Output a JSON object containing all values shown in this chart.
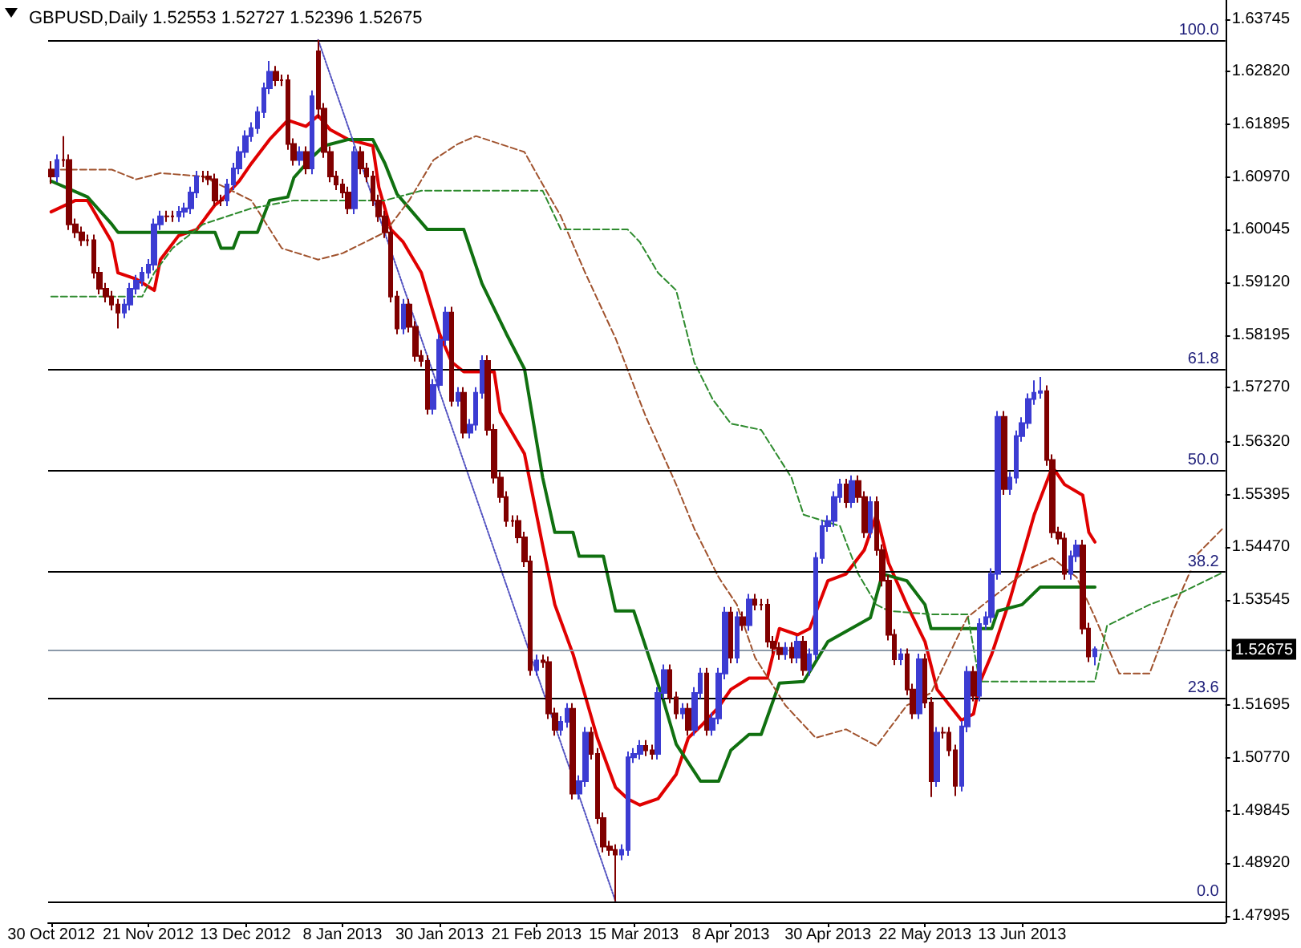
{
  "chart_data": {
    "type": "candlestick",
    "title": "GBPUSD,Daily 1.52553 1.52727 1.52396 1.52675",
    "categories": [
      "30 Oct 2012",
      null,
      null,
      null,
      null,
      null,
      null,
      null,
      null,
      null,
      null,
      null,
      null,
      null,
      null,
      null,
      "21 Nov 2012",
      null,
      null,
      null,
      null,
      null,
      null,
      null,
      null,
      null,
      null,
      null,
      null,
      null,
      null,
      null,
      "13 Dec 2012",
      null,
      null,
      null,
      null,
      null,
      null,
      null,
      null,
      null,
      null,
      null,
      null,
      null,
      null,
      null,
      "8 Jan 2013",
      null,
      null,
      null,
      null,
      null,
      null,
      null,
      null,
      null,
      null,
      null,
      null,
      null,
      null,
      null,
      "30 Jan 2013",
      null,
      null,
      null,
      null,
      null,
      null,
      null,
      null,
      null,
      null,
      null,
      null,
      null,
      null,
      null,
      "21 Feb 2013",
      null,
      null,
      null,
      null,
      null,
      null,
      null,
      null,
      null,
      null,
      null,
      null,
      null,
      null,
      null,
      "15 Mar 2013",
      null,
      null,
      null,
      null,
      null,
      null,
      null,
      null,
      null,
      null,
      null,
      null,
      null,
      null,
      null,
      "8 Apr 2013",
      null,
      null,
      null,
      null,
      null,
      null,
      null,
      null,
      null,
      null,
      null,
      null,
      null,
      null,
      null,
      "30 Apr 2013",
      null,
      null,
      null,
      null,
      null,
      null,
      null,
      null,
      null,
      null,
      null,
      null,
      null,
      null,
      null,
      "22 May 2013",
      null,
      null,
      null,
      null,
      null,
      null,
      null,
      null,
      null,
      null,
      null,
      null,
      null,
      null,
      null,
      "13 Jun 2013",
      null,
      null,
      null,
      null,
      null,
      null,
      null,
      null,
      null,
      null,
      null,
      null,
      null,
      null,
      null,
      null,
      null,
      null,
      null,
      null,
      null,
      null,
      null,
      null,
      null,
      null,
      null,
      null,
      null,
      null,
      null,
      null,
      null
    ],
    "ohlc": [
      [
        1.611,
        1.6125,
        1.6085,
        1.6098
      ],
      [
        1.6098,
        1.6137,
        1.6088,
        1.6127
      ],
      [
        1.6127,
        1.6169,
        1.6115,
        1.6127
      ],
      [
        1.6127,
        1.6137,
        1.6004,
        1.6014
      ],
      [
        1.6014,
        1.6024,
        1.599,
        1.6
      ],
      [
        1.6,
        1.601,
        1.5976,
        1.5986
      ],
      [
        1.5986,
        1.5996,
        1.5976,
        1.5986
      ],
      [
        1.5986,
        1.5996,
        1.5919,
        1.5929
      ],
      [
        1.5929,
        1.5939,
        1.5891,
        1.5901
      ],
      [
        1.5901,
        1.5911,
        1.5877,
        1.5887
      ],
      [
        1.5887,
        1.5897,
        1.5863,
        1.5873
      ],
      [
        1.5873,
        1.5883,
        1.5831,
        1.5859
      ],
      [
        1.5859,
        1.5883,
        1.5849,
        1.5873
      ],
      [
        1.5873,
        1.5911,
        1.5863,
        1.5901
      ],
      [
        1.5901,
        1.5925,
        1.5891,
        1.5915
      ],
      [
        1.5915,
        1.5939,
        1.5905,
        1.5929
      ],
      [
        1.5929,
        1.5953,
        1.5919,
        1.5943
      ],
      [
        1.5943,
        1.6024,
        1.5933,
        1.6014
      ],
      [
        1.6014,
        1.6038,
        1.6004,
        1.6028
      ],
      [
        1.6028,
        1.6038,
        1.6018,
        1.6028
      ],
      [
        1.6028,
        1.6038,
        1.6018,
        1.6028
      ],
      [
        1.6028,
        1.6046,
        1.6018,
        1.6036
      ],
      [
        1.6036,
        1.6052,
        1.6026,
        1.6042
      ],
      [
        1.6042,
        1.608,
        1.6032,
        1.607
      ],
      [
        1.607,
        1.6108,
        1.606,
        1.6098
      ],
      [
        1.6098,
        1.6108,
        1.6088,
        1.6098
      ],
      [
        1.6098,
        1.6108,
        1.6083,
        1.6093
      ],
      [
        1.6093,
        1.6103,
        1.6046,
        1.6056
      ],
      [
        1.6056,
        1.6066,
        1.6046,
        1.6056
      ],
      [
        1.6056,
        1.6094,
        1.6046,
        1.6084
      ],
      [
        1.6084,
        1.6122,
        1.6074,
        1.6112
      ],
      [
        1.6112,
        1.6151,
        1.6102,
        1.6141
      ],
      [
        1.6141,
        1.6179,
        1.6131,
        1.6169
      ],
      [
        1.6169,
        1.6193,
        1.6159,
        1.6183
      ],
      [
        1.6183,
        1.6221,
        1.6173,
        1.6211
      ],
      [
        1.6211,
        1.6263,
        1.6201,
        1.6253
      ],
      [
        1.6253,
        1.6301,
        1.6243,
        1.6282
      ],
      [
        1.6282,
        1.6292,
        1.6257,
        1.6267
      ],
      [
        1.6267,
        1.6277,
        1.6257,
        1.6267
      ],
      [
        1.6267,
        1.6277,
        1.6145,
        1.6155
      ],
      [
        1.6155,
        1.6165,
        1.6117,
        1.6127
      ],
      [
        1.6127,
        1.6151,
        1.6117,
        1.6141
      ],
      [
        1.6141,
        1.6151,
        1.6102,
        1.6112
      ],
      [
        1.6112,
        1.6249,
        1.6102,
        1.6239
      ],
      [
        1.6318,
        1.6338,
        1.62,
        1.6217
      ],
      [
        1.6217,
        1.6227,
        1.6131,
        1.6141
      ],
      [
        1.6141,
        1.6151,
        1.6088,
        1.6098
      ],
      [
        1.6098,
        1.6108,
        1.6074,
        1.6084
      ],
      [
        1.6084,
        1.6094,
        1.606,
        1.607
      ],
      [
        1.607,
        1.608,
        1.6032,
        1.6042
      ],
      [
        1.6042,
        1.6151,
        1.6032,
        1.6141
      ],
      [
        1.6141,
        1.6151,
        1.6102,
        1.6112
      ],
      [
        1.6112,
        1.6122,
        1.6088,
        1.6098
      ],
      [
        1.6098,
        1.6108,
        1.6046,
        1.6056
      ],
      [
        1.6056,
        1.6066,
        1.6018,
        1.6028
      ],
      [
        1.6028,
        1.6038,
        1.599,
        1.6
      ],
      [
        1.6,
        1.601,
        1.5877,
        1.5887
      ],
      [
        1.5887,
        1.5897,
        1.5821,
        1.5831
      ],
      [
        1.5831,
        1.5883,
        1.5821,
        1.5873
      ],
      [
        1.5873,
        1.5883,
        1.5824,
        1.5834
      ],
      [
        1.5834,
        1.5844,
        1.5773,
        1.5783
      ],
      [
        1.5783,
        1.5793,
        1.5764,
        1.5774
      ],
      [
        1.5774,
        1.5784,
        1.568,
        1.569
      ],
      [
        1.569,
        1.5742,
        1.568,
        1.5732
      ],
      [
        1.5732,
        1.5821,
        1.5722,
        1.5811
      ],
      [
        1.5811,
        1.5869,
        1.5801,
        1.5859
      ],
      [
        1.5859,
        1.5869,
        1.5694,
        1.5704
      ],
      [
        1.5704,
        1.5728,
        1.5694,
        1.5718
      ],
      [
        1.5718,
        1.5728,
        1.5638,
        1.5648
      ],
      [
        1.5648,
        1.5672,
        1.5638,
        1.5662
      ],
      [
        1.5662,
        1.5728,
        1.5652,
        1.5718
      ],
      [
        1.5718,
        1.5784,
        1.5708,
        1.5774
      ],
      [
        1.5774,
        1.5784,
        1.5643,
        1.5653
      ],
      [
        1.5653,
        1.5663,
        1.5559,
        1.5569
      ],
      [
        1.5569,
        1.5579,
        1.5525,
        1.5535
      ],
      [
        1.5535,
        1.5545,
        1.5483,
        1.5493
      ],
      [
        1.5493,
        1.5503,
        1.5483,
        1.5493
      ],
      [
        1.5493,
        1.5503,
        1.5454,
        1.5464
      ],
      [
        1.5464,
        1.5474,
        1.5412,
        1.5422
      ],
      [
        1.5422,
        1.5432,
        1.5221,
        1.5231
      ],
      [
        1.5231,
        1.5258,
        1.5221,
        1.5248
      ],
      [
        1.5248,
        1.5258,
        1.5235,
        1.5245
      ],
      [
        1.5245,
        1.5255,
        1.5145,
        1.5155
      ],
      [
        1.5155,
        1.5165,
        1.5116,
        1.5126
      ],
      [
        1.5126,
        1.515,
        1.5116,
        1.514
      ],
      [
        1.514,
        1.5173,
        1.513,
        1.5163
      ],
      [
        1.5163,
        1.5173,
        1.5004,
        1.5014
      ],
      [
        1.5014,
        1.5046,
        1.5004,
        1.5036
      ],
      [
        1.5036,
        1.5131,
        1.5026,
        1.5121
      ],
      [
        1.5121,
        1.5131,
        1.5074,
        1.5084
      ],
      [
        1.5084,
        1.5094,
        1.4961,
        1.4971
      ],
      [
        1.4971,
        1.4981,
        1.4911,
        1.4921
      ],
      [
        1.4921,
        1.4931,
        1.4905,
        1.4915
      ],
      [
        1.4915,
        1.4925,
        1.4825,
        1.4907
      ],
      [
        1.4907,
        1.4925,
        1.4897,
        1.4915
      ],
      [
        1.4915,
        1.5088,
        1.4905,
        1.5078
      ],
      [
        1.5078,
        1.5094,
        1.5068,
        1.5084
      ],
      [
        1.5084,
        1.5108,
        1.5074,
        1.5098
      ],
      [
        1.5098,
        1.5108,
        1.508,
        1.509
      ],
      [
        1.509,
        1.51,
        1.5074,
        1.5084
      ],
      [
        1.5084,
        1.5201,
        1.5074,
        1.5191
      ],
      [
        1.5191,
        1.5241,
        1.5181,
        1.5231
      ],
      [
        1.5231,
        1.5241,
        1.5173,
        1.5183
      ],
      [
        1.5183,
        1.5193,
        1.5145,
        1.5155
      ],
      [
        1.5155,
        1.5173,
        1.5145,
        1.5163
      ],
      [
        1.5163,
        1.5173,
        1.5116,
        1.5126
      ],
      [
        1.5126,
        1.5201,
        1.5116,
        1.5191
      ],
      [
        1.5191,
        1.5235,
        1.5181,
        1.5225
      ],
      [
        1.5225,
        1.5235,
        1.5116,
        1.5126
      ],
      [
        1.5126,
        1.5156,
        1.5116,
        1.5146
      ],
      [
        1.5146,
        1.5235,
        1.5136,
        1.5225
      ],
      [
        1.5225,
        1.5342,
        1.5215,
        1.5332
      ],
      [
        1.5332,
        1.5342,
        1.5243,
        1.5253
      ],
      [
        1.5253,
        1.5334,
        1.5243,
        1.5324
      ],
      [
        1.5324,
        1.5334,
        1.53,
        1.531
      ],
      [
        1.531,
        1.5365,
        1.53,
        1.5355
      ],
      [
        1.5355,
        1.5365,
        1.5336,
        1.5346
      ],
      [
        1.5346,
        1.5356,
        1.5336,
        1.5346
      ],
      [
        1.5346,
        1.5356,
        1.5271,
        1.5281
      ],
      [
        1.5281,
        1.5291,
        1.526,
        1.527
      ],
      [
        1.527,
        1.528,
        1.5249,
        1.5259
      ],
      [
        1.5259,
        1.528,
        1.5249,
        1.527
      ],
      [
        1.527,
        1.528,
        1.5243,
        1.5253
      ],
      [
        1.5253,
        1.5291,
        1.5243,
        1.5281
      ],
      [
        1.5281,
        1.5291,
        1.5221,
        1.5231
      ],
      [
        1.5231,
        1.5269,
        1.5221,
        1.5259
      ],
      [
        1.5259,
        1.5438,
        1.5249,
        1.5428
      ],
      [
        1.5428,
        1.5494,
        1.5418,
        1.5484
      ],
      [
        1.5484,
        1.5503,
        1.5474,
        1.5493
      ],
      [
        1.5493,
        1.5545,
        1.5483,
        1.5535
      ],
      [
        1.5535,
        1.5567,
        1.5525,
        1.5557
      ],
      [
        1.5557,
        1.5567,
        1.5516,
        1.5526
      ],
      [
        1.5526,
        1.5573,
        1.5516,
        1.5563
      ],
      [
        1.5563,
        1.5573,
        1.5525,
        1.5535
      ],
      [
        1.5535,
        1.5545,
        1.5463,
        1.5473
      ],
      [
        1.5473,
        1.5536,
        1.5463,
        1.5526
      ],
      [
        1.5526,
        1.5536,
        1.5432,
        1.5442
      ],
      [
        1.5442,
        1.5452,
        1.5378,
        1.5388
      ],
      [
        1.5388,
        1.5398,
        1.5283,
        1.5293
      ],
      [
        1.5293,
        1.5303,
        1.524,
        1.525
      ],
      [
        1.525,
        1.5269,
        1.524,
        1.5259
      ],
      [
        1.5259,
        1.5269,
        1.5187,
        1.5197
      ],
      [
        1.5197,
        1.5207,
        1.5145,
        1.5155
      ],
      [
        1.5155,
        1.526,
        1.5145,
        1.525
      ],
      [
        1.525,
        1.526,
        1.5164,
        1.5174
      ],
      [
        1.5174,
        1.5184,
        1.5008,
        1.5036
      ],
      [
        1.5036,
        1.5131,
        1.5026,
        1.5121
      ],
      [
        1.5121,
        1.5131,
        1.5111,
        1.5121
      ],
      [
        1.5121,
        1.5131,
        1.508,
        1.509
      ],
      [
        1.509,
        1.51,
        1.501,
        1.5028
      ],
      [
        1.5028,
        1.5142,
        1.5018,
        1.5132
      ],
      [
        1.5132,
        1.5238,
        1.5122,
        1.5228
      ],
      [
        1.5228,
        1.5238,
        1.5176,
        1.5186
      ],
      [
        1.5186,
        1.5322,
        1.5176,
        1.5312
      ],
      [
        1.5312,
        1.5334,
        1.5302,
        1.5324
      ],
      [
        1.5324,
        1.541,
        1.5314,
        1.54
      ],
      [
        1.54,
        1.5686,
        1.539,
        1.5676
      ],
      [
        1.5676,
        1.5686,
        1.5539,
        1.5549
      ],
      [
        1.5549,
        1.5579,
        1.5539,
        1.5569
      ],
      [
        1.5569,
        1.5652,
        1.5559,
        1.5642
      ],
      [
        1.5642,
        1.5675,
        1.5632,
        1.5665
      ],
      [
        1.5665,
        1.5717,
        1.5655,
        1.5707
      ],
      [
        1.5707,
        1.574,
        1.5697,
        1.5718
      ],
      [
        1.5718,
        1.5746,
        1.5708,
        1.5721
      ],
      [
        1.5721,
        1.5731,
        1.559,
        1.56
      ],
      [
        1.56,
        1.561,
        1.5463,
        1.5473
      ],
      [
        1.5473,
        1.5483,
        1.5452,
        1.5462
      ],
      [
        1.5462,
        1.5472,
        1.539,
        1.54
      ],
      [
        1.54,
        1.5441,
        1.539,
        1.5431
      ],
      [
        1.5431,
        1.546,
        1.5421,
        1.545
      ],
      [
        1.545,
        1.546,
        1.5294,
        1.5304
      ],
      [
        1.5304,
        1.5314,
        1.5245,
        1.5255
      ],
      [
        1.52553,
        1.52727,
        1.52396,
        1.52675
      ],
      null,
      null,
      null,
      null,
      null,
      null,
      null,
      null,
      null,
      null,
      null,
      null,
      null,
      null,
      null,
      null,
      null,
      null,
      null,
      null,
      null
    ],
    "colors": [
      "#800000",
      "#3c3cd2",
      "#800000",
      "#800000",
      "#800000",
      "#800000",
      "#800000",
      "#800000",
      "#800000",
      "#800000",
      "#800000",
      "#800000",
      "#3c3cd2",
      "#3c3cd2",
      "#3c3cd2",
      "#3c3cd2",
      "#3c3cd2",
      "#3c3cd2",
      "#3c3cd2",
      "#800000",
      "#800000",
      "#3c3cd2",
      "#3c3cd2",
      "#3c3cd2",
      "#3c3cd2",
      "#800000",
      "#800000",
      "#800000",
      "#800000",
      "#3c3cd2",
      "#3c3cd2",
      "#3c3cd2",
      "#3c3cd2",
      "#3c3cd2",
      "#3c3cd2",
      "#3c3cd2",
      "#3c3cd2",
      "#800000",
      "#800000",
      "#800000",
      "#800000",
      "#3c3cd2",
      "#800000",
      "#3c3cd2",
      "#800000",
      "#800000",
      "#800000",
      "#800000",
      "#800000",
      "#800000",
      "#3c3cd2",
      "#800000",
      "#800000",
      "#800000",
      "#800000",
      "#800000",
      "#800000",
      "#800000",
      "#3c3cd2",
      "#800000",
      "#800000",
      "#800000",
      "#800000",
      "#3c3cd2",
      "#3c3cd2",
      "#3c3cd2",
      "#800000",
      "#3c3cd2",
      "#800000",
      "#3c3cd2",
      "#3c3cd2",
      "#3c3cd2",
      "#800000",
      "#800000",
      "#800000",
      "#800000",
      "#800000",
      "#800000",
      "#800000",
      "#800000",
      "#3c3cd2",
      "#800000",
      "#800000",
      "#800000",
      "#3c3cd2",
      "#3c3cd2",
      "#800000",
      "#3c3cd2",
      "#3c3cd2",
      "#800000",
      "#800000",
      "#800000",
      "#800000",
      "#800000",
      "#3c3cd2",
      "#3c3cd2",
      "#3c3cd2",
      "#3c3cd2",
      "#800000",
      "#800000",
      "#3c3cd2",
      "#3c3cd2",
      "#800000",
      "#800000",
      "#3c3cd2",
      "#800000",
      "#3c3cd2",
      "#3c3cd2",
      "#800000",
      "#3c3cd2",
      "#3c3cd2",
      "#3c3cd2",
      "#800000",
      "#3c3cd2",
      "#800000",
      "#3c3cd2",
      "#800000",
      "#800000",
      "#800000",
      "#800000",
      "#800000",
      "#3c3cd2",
      "#800000",
      "#3c3cd2",
      "#800000",
      "#3c3cd2",
      "#3c3cd2",
      "#3c3cd2",
      "#3c3cd2",
      "#3c3cd2",
      "#3c3cd2",
      "#800000",
      "#3c3cd2",
      "#800000",
      "#800000",
      "#3c3cd2",
      "#800000",
      "#800000",
      "#800000",
      "#800000",
      "#3c3cd2",
      "#800000",
      "#800000",
      "#3c3cd2",
      "#800000",
      "#800000",
      "#3c3cd2",
      "#800000",
      "#800000",
      "#800000",
      "#3c3cd2",
      "#3c3cd2",
      "#800000",
      "#3c3cd2",
      "#3c3cd2",
      "#3c3cd2",
      "#3c3cd2",
      "#800000",
      "#3c3cd2",
      "#3c3cd2",
      "#3c3cd2",
      "#3c3cd2",
      "#3c3cd2",
      "#3c3cd2",
      "#800000",
      "#800000",
      "#800000",
      "#800000",
      "#3c3cd2",
      "#3c3cd2",
      "#800000",
      "#800000",
      "#3c3cd2",
      null,
      null,
      null,
      null,
      null,
      null,
      null,
      null,
      null,
      null,
      null,
      null,
      null,
      null,
      null,
      null,
      null,
      null,
      null,
      null,
      null
    ],
    "series": [
      {
        "type": "line",
        "color": "#e00000",
        "line_style": "solid",
        "values": [
          1.6036,
          null,
          null,
          null,
          1.6056,
          null,
          1.6056,
          null,
          null,
          null,
          1.5983,
          1.5929,
          null,
          null,
          1.5918,
          null,
          null,
          1.5898,
          1.5952,
          null,
          null,
          1.5994,
          null,
          null,
          1.6005,
          null,
          null,
          1.6048,
          1.6056,
          null,
          null,
          1.609,
          null,
          1.6121,
          null,
          null,
          1.6163,
          null,
          null,
          1.6197,
          null,
          null,
          1.6186,
          null,
          1.6205,
          null,
          1.618,
          null,
          null,
          1.6163,
          null,
          null,
          null,
          1.6152,
          1.6079,
          null,
          1.6005,
          null,
          1.5983,
          null,
          null,
          1.5929,
          null,
          null,
          1.5822,
          null,
          1.5772,
          null,
          1.5755,
          null,
          null,
          null,
          null,
          1.5755,
          1.5684,
          null,
          null,
          null,
          1.5611,
          null,
          null,
          1.545,
          null,
          1.5346,
          null,
          null,
          1.5259,
          null,
          1.5186,
          null,
          1.5112,
          null,
          null,
          1.5025,
          null,
          1.5005,
          null,
          1.4994,
          null,
          null,
          1.5005,
          null,
          null,
          1.5048,
          null,
          1.5112,
          null,
          1.5132,
          null,
          null,
          1.5166,
          null,
          1.5197,
          null,
          null,
          1.5217,
          null,
          null,
          1.5217,
          null,
          1.5304,
          null,
          null,
          1.5293,
          null,
          1.5304,
          null,
          null,
          1.5388,
          null,
          null,
          1.54,
          null,
          null,
          1.5442,
          null,
          1.5504,
          null,
          1.5419,
          null,
          null,
          1.5346,
          null,
          null,
          1.5281,
          null,
          1.5197,
          null,
          null,
          null,
          1.5143,
          null,
          1.5154,
          1.5208,
          null,
          1.5259,
          null,
          null,
          1.5355,
          null,
          null,
          null,
          1.5504,
          null,
          null,
          1.5588,
          null,
          1.5557,
          null,
          null,
          1.5538,
          1.5473,
          1.5456,
          null,
          null,
          null,
          null,
          null,
          null,
          null,
          null,
          null,
          null,
          null,
          null,
          null,
          null,
          null,
          null,
          null,
          null,
          null,
          null,
          null
        ]
      },
      {
        "type": "line",
        "color": "#107010",
        "line_style": "solid",
        "values": [
          1.609,
          null,
          null,
          null,
          null,
          null,
          1.6062,
          null,
          null,
          null,
          1.6014,
          1.6,
          null,
          null,
          null,
          null,
          null,
          null,
          null,
          null,
          null,
          null,
          null,
          null,
          null,
          null,
          null,
          1.6,
          1.5972,
          null,
          1.5972,
          1.6,
          null,
          null,
          1.6,
          null,
          1.6056,
          null,
          null,
          1.6062,
          1.6096,
          null,
          null,
          1.6132,
          null,
          1.6152,
          null,
          null,
          null,
          1.6163,
          null,
          null,
          null,
          1.6163,
          null,
          1.6121,
          null,
          1.6067,
          null,
          null,
          null,
          null,
          1.6005,
          null,
          null,
          null,
          null,
          null,
          1.6005,
          null,
          null,
          1.591,
          null,
          null,
          null,
          1.5822,
          null,
          null,
          1.576,
          null,
          null,
          1.5569,
          null,
          1.5473,
          null,
          null,
          1.5473,
          1.5431,
          null,
          null,
          null,
          1.5431,
          null,
          1.5335,
          null,
          null,
          1.5335,
          null,
          null,
          1.5239,
          null,
          1.5174,
          null,
          1.5101,
          null,
          null,
          null,
          1.5036,
          null,
          null,
          1.5036,
          null,
          1.509,
          null,
          null,
          1.5118,
          null,
          1.5118,
          null,
          null,
          1.5208,
          null,
          null,
          null,
          1.5211,
          null,
          null,
          null,
          1.5281,
          null,
          null,
          null,
          null,
          null,
          null,
          1.5323,
          null,
          1.54,
          null,
          null,
          null,
          1.5388,
          null,
          null,
          1.5346,
          1.5304,
          null,
          null,
          null,
          null,
          null,
          null,
          null,
          null,
          null,
          1.5304,
          1.5335,
          null,
          null,
          null,
          1.5346,
          null,
          null,
          1.5377,
          null,
          null,
          null,
          null,
          null,
          null,
          null,
          null,
          1.5377,
          null,
          null,
          null,
          null,
          null,
          null,
          null,
          null,
          null,
          null,
          null,
          null,
          null,
          null,
          null,
          null,
          null,
          null,
          null,
          null,
          null
        ]
      },
      {
        "type": "line",
        "color": "#a0522d",
        "line_style": "dashed",
        "values": [
          1.611,
          null,
          null,
          null,
          null,
          null,
          null,
          null,
          null,
          null,
          1.611,
          null,
          null,
          null,
          1.6093,
          null,
          null,
          null,
          1.6104,
          null,
          null,
          null,
          null,
          null,
          null,
          1.6098,
          null,
          null,
          null,
          null,
          null,
          null,
          null,
          1.6056,
          null,
          null,
          null,
          null,
          1.5972,
          null,
          null,
          null,
          null,
          null,
          1.5952,
          null,
          null,
          null,
          1.5963,
          null,
          null,
          null,
          null,
          null,
          null,
          1.6,
          null,
          null,
          null,
          1.6056,
          null,
          null,
          null,
          1.6127,
          null,
          null,
          null,
          1.6155,
          null,
          null,
          1.6169,
          null,
          null,
          null,
          null,
          null,
          null,
          null,
          1.6141,
          null,
          null,
          1.6084,
          null,
          null,
          1.6028,
          null,
          null,
          null,
          1.5929,
          null,
          null,
          null,
          null,
          1.5814,
          null,
          null,
          null,
          null,
          1.5676,
          null,
          null,
          null,
          null,
          1.5557,
          null,
          null,
          1.5479,
          null,
          null,
          null,
          1.5394,
          null,
          null,
          1.5346,
          null,
          null,
          1.5253,
          null,
          null,
          null,
          null,
          1.5169,
          null,
          null,
          null,
          null,
          1.5112,
          null,
          null,
          null,
          null,
          1.5127,
          null,
          null,
          null,
          null,
          1.5098,
          null,
          null,
          null,
          null,
          1.5169,
          null,
          null,
          null,
          1.5191,
          null,
          null,
          null,
          1.5281,
          null,
          1.5324,
          null,
          null,
          null,
          null,
          1.5366,
          null,
          null,
          null,
          null,
          1.5408,
          null,
          null,
          null,
          1.5428,
          null,
          null,
          null,
          1.5394,
          null,
          null,
          1.5324,
          null,
          null,
          null,
          1.5225,
          null,
          null,
          null,
          null,
          1.5225,
          null,
          null,
          null,
          1.5338,
          null,
          null,
          null,
          1.5436,
          null,
          null,
          null,
          1.5479
        ]
      },
      {
        "type": "line",
        "color": "#2e8b2e",
        "line_style": "dashed",
        "values": [
          1.5887,
          null,
          null,
          null,
          null,
          null,
          null,
          null,
          null,
          null,
          null,
          null,
          null,
          null,
          null,
          1.5887,
          null,
          1.5929,
          null,
          null,
          1.5972,
          null,
          null,
          null,
          null,
          1.6014,
          null,
          null,
          null,
          null,
          null,
          null,
          null,
          1.6042,
          null,
          null,
          null,
          null,
          null,
          null,
          1.6056,
          null,
          null,
          null,
          null,
          null,
          null,
          null,
          null,
          null,
          null,
          null,
          null,
          null,
          null,
          1.6056,
          null,
          null,
          null,
          null,
          null,
          1.6073,
          null,
          null,
          null,
          null,
          null,
          null,
          null,
          null,
          null,
          null,
          null,
          null,
          null,
          null,
          null,
          null,
          null,
          null,
          null,
          1.6073,
          null,
          null,
          1.6005,
          null,
          null,
          null,
          null,
          null,
          null,
          null,
          null,
          null,
          null,
          1.6005,
          null,
          1.5983,
          null,
          null,
          1.5929,
          null,
          null,
          1.5898,
          null,
          null,
          1.5771,
          null,
          null,
          1.5707,
          null,
          null,
          1.5664,
          null,
          null,
          null,
          null,
          1.5653,
          null,
          null,
          null,
          null,
          1.5569,
          null,
          1.5504,
          null,
          null,
          null,
          null,
          null,
          1.5484,
          null,
          null,
          1.54,
          null,
          null,
          1.5346,
          null,
          1.5335,
          null,
          null,
          null,
          null,
          null,
          null,
          1.5329,
          null,
          null,
          null,
          null,
          null,
          1.5329,
          null,
          1.5211,
          null,
          null,
          null,
          null,
          null,
          null,
          null,
          null,
          null,
          null,
          null,
          null,
          null,
          null,
          null,
          null,
          null,
          null,
          1.5211,
          null,
          1.5309,
          null,
          null,
          null,
          null,
          null,
          null,
          1.5346,
          null,
          null,
          null,
          null,
          1.5366,
          null,
          null,
          null,
          null,
          null,
          null,
          1.5402
        ]
      },
      {
        "type": "line",
        "color": "#5050c0",
        "line_style": "dotted",
        "values": [
          null,
          null,
          null,
          null,
          null,
          null,
          null,
          null,
          null,
          null,
          null,
          null,
          null,
          null,
          null,
          null,
          null,
          null,
          null,
          null,
          null,
          null,
          null,
          null,
          null,
          null,
          null,
          null,
          null,
          null,
          null,
          null,
          null,
          null,
          null,
          null,
          null,
          null,
          null,
          null,
          null,
          null,
          null,
          null,
          1.6338,
          null,
          null,
          null,
          null,
          null,
          null,
          null,
          null,
          null,
          null,
          null,
          null,
          null,
          null,
          null,
          null,
          null,
          null,
          null,
          null,
          null,
          null,
          null,
          null,
          null,
          null,
          null,
          null,
          null,
          null,
          null,
          null,
          null,
          null,
          null,
          null,
          null,
          null,
          null,
          null,
          null,
          null,
          null,
          null,
          null,
          null,
          null,
          null,
          1.4825,
          null,
          null,
          null,
          null,
          null,
          null,
          null,
          null,
          null,
          null,
          null,
          null,
          null,
          null,
          null,
          null,
          null,
          null,
          null,
          null,
          null,
          null,
          null,
          null,
          null,
          null,
          null,
          null,
          null,
          null,
          null,
          null,
          null,
          null,
          null,
          null,
          null,
          null,
          null,
          null,
          null,
          null,
          null,
          null,
          null,
          null,
          null,
          null,
          null,
          null,
          null,
          null,
          null,
          null,
          null,
          null,
          null,
          null,
          null,
          null,
          null,
          null,
          null,
          null,
          null,
          null,
          null,
          null,
          null,
          null,
          null,
          null,
          null,
          null,
          null,
          null,
          null,
          null,
          null,
          null,
          null,
          null,
          null,
          null,
          null,
          null,
          null,
          null,
          null,
          null,
          null,
          null,
          null,
          null,
          null,
          null,
          null,
          null,
          null,
          null
        ]
      }
    ],
    "ylim": [
      1.4788,
      1.6408
    ],
    "yticks": [
      {
        "value": 1.63745,
        "label": "1.63745"
      },
      {
        "value": 1.6282,
        "label": "1.62820"
      },
      {
        "value": 1.61895,
        "label": "1.61895"
      },
      {
        "value": 1.6097,
        "label": "1.60970"
      },
      {
        "value": 1.60045,
        "label": "1.60045"
      },
      {
        "value": 1.5912,
        "label": "1.59120"
      },
      {
        "value": 1.58195,
        "label": "1.58195"
      },
      {
        "value": 1.5727,
        "label": "1.57270"
      },
      {
        "value": 1.5632,
        "label": "1.56320"
      },
      {
        "value": 1.55395,
        "label": "1.55395"
      },
      {
        "value": 1.5447,
        "label": "1.54470"
      },
      {
        "value": 1.53545,
        "label": "1.53545"
      },
      {
        "value": 1.52675,
        "label": "1.52675"
      },
      {
        "value": 1.51695,
        "label": "1.51695"
      },
      {
        "value": 1.5077,
        "label": "1.50770"
      },
      {
        "value": 1.49845,
        "label": "1.49845"
      },
      {
        "value": 1.4892,
        "label": "1.48920"
      },
      {
        "value": 1.47995,
        "label": "1.47995"
      }
    ],
    "ref_lines": [
      {
        "axis": "y",
        "value": 1.6338,
        "color": "#000000"
      },
      {
        "axis": "y",
        "value": 1.576,
        "color": "#000000"
      },
      {
        "axis": "y",
        "value": 1.5582,
        "color": "#000000"
      },
      {
        "axis": "y",
        "value": 1.5403,
        "color": "#000000"
      },
      {
        "axis": "y",
        "value": 1.5182,
        "color": "#000000"
      },
      {
        "axis": "y",
        "value": 1.4825,
        "color": "#000000"
      },
      {
        "axis": "y",
        "value": 1.52675,
        "color": "#8c9aaa"
      }
    ],
    "annotations": [
      "100.0",
      "61.8",
      "50.0",
      "38.2",
      "23.6",
      "0.0"
    ],
    "grid": false,
    "marker": "none"
  }
}
